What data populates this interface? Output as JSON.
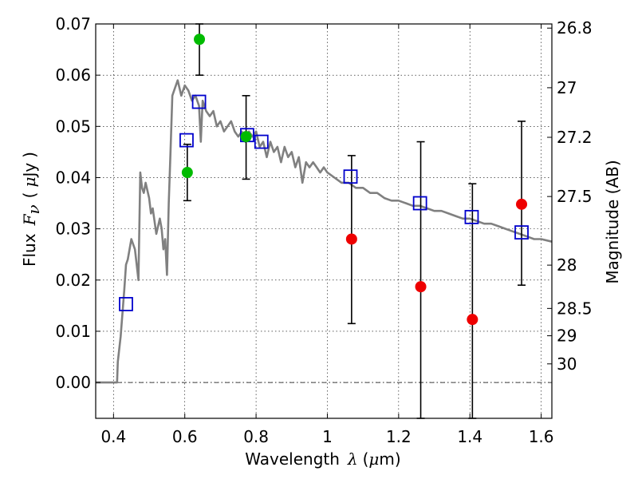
{
  "chart_data": {
    "type": "scatter",
    "xlabel": {
      "prefix": "Wavelength",
      "symbol": "λ",
      "unit_open": "(",
      "unit_mu": "μ",
      "unit_rest": "m)"
    },
    "ylabel": {
      "prefix": "Flux",
      "symbol": "F",
      "sub": "ν",
      "unit_open": "(",
      "unit_mu": "μ",
      "unit_rest": "Jy",
      "unit_close": ")"
    },
    "y2label": "Magnitude (AB)",
    "xlim": [
      0.35,
      1.63
    ],
    "ylim": [
      -0.007,
      0.07
    ],
    "grid": true,
    "xticks": [
      {
        "v": 0.4,
        "label": "0.4"
      },
      {
        "v": 0.6,
        "label": "0.6"
      },
      {
        "v": 0.8,
        "label": "0.8"
      },
      {
        "v": 1.0,
        "label": "1"
      },
      {
        "v": 1.2,
        "label": "1.2"
      },
      {
        "v": 1.4,
        "label": "1.4"
      },
      {
        "v": 1.6,
        "label": "1.6"
      }
    ],
    "yticks": [
      {
        "v": 0.0,
        "label": "0.00"
      },
      {
        "v": 0.01,
        "label": "0.01"
      },
      {
        "v": 0.02,
        "label": "0.02"
      },
      {
        "v": 0.03,
        "label": "0.03"
      },
      {
        "v": 0.04,
        "label": "0.04"
      },
      {
        "v": 0.05,
        "label": "0.05"
      },
      {
        "v": 0.06,
        "label": "0.06"
      },
      {
        "v": 0.07,
        "label": "0.07"
      }
    ],
    "magnitude_ticks": [
      {
        "mag": 26.8,
        "label": "26.8"
      },
      {
        "mag": 27.0,
        "label": "27"
      },
      {
        "mag": 27.2,
        "label": "27.2"
      },
      {
        "mag": 27.5,
        "label": "27.5"
      },
      {
        "mag": 28.0,
        "label": "28"
      },
      {
        "mag": 28.5,
        "label": "28.5"
      },
      {
        "mag": 29.0,
        "label": "29"
      },
      {
        "mag": 30.0,
        "label": "30"
      }
    ],
    "colors": {
      "template": "#808080",
      "model_squares": "#0000cc",
      "observed_optical": "#00bb00",
      "observed_nir": "#ee0000",
      "errorbar": "#000000"
    },
    "template_spectrum": {
      "x": [
        0.35,
        0.4,
        0.41,
        0.412,
        0.42,
        0.43,
        0.435,
        0.44,
        0.45,
        0.46,
        0.47,
        0.475,
        0.48,
        0.485,
        0.49,
        0.5,
        0.505,
        0.51,
        0.52,
        0.53,
        0.535,
        0.54,
        0.545,
        0.55,
        0.555,
        0.56,
        0.565,
        0.57,
        0.58,
        0.59,
        0.6,
        0.61,
        0.62,
        0.63,
        0.64,
        0.645,
        0.65,
        0.66,
        0.67,
        0.68,
        0.69,
        0.7,
        0.71,
        0.72,
        0.73,
        0.74,
        0.75,
        0.76,
        0.77,
        0.78,
        0.79,
        0.8,
        0.81,
        0.82,
        0.83,
        0.84,
        0.85,
        0.86,
        0.87,
        0.88,
        0.89,
        0.9,
        0.91,
        0.92,
        0.93,
        0.94,
        0.95,
        0.96,
        0.97,
        0.98,
        0.99,
        1.0,
        1.02,
        1.04,
        1.06,
        1.08,
        1.1,
        1.12,
        1.14,
        1.16,
        1.18,
        1.2,
        1.22,
        1.24,
        1.26,
        1.28,
        1.3,
        1.32,
        1.34,
        1.36,
        1.38,
        1.4,
        1.42,
        1.44,
        1.46,
        1.48,
        1.5,
        1.52,
        1.54,
        1.56,
        1.58,
        1.6,
        1.63
      ],
      "y": [
        0.0,
        0.0,
        0.0,
        0.004,
        0.009,
        0.018,
        0.023,
        0.024,
        0.028,
        0.026,
        0.02,
        0.041,
        0.038,
        0.037,
        0.039,
        0.036,
        0.033,
        0.034,
        0.029,
        0.032,
        0.03,
        0.026,
        0.028,
        0.021,
        0.035,
        0.045,
        0.056,
        0.057,
        0.059,
        0.056,
        0.058,
        0.057,
        0.055,
        0.056,
        0.054,
        0.047,
        0.055,
        0.053,
        0.052,
        0.053,
        0.05,
        0.051,
        0.049,
        0.05,
        0.051,
        0.049,
        0.048,
        0.049,
        0.047,
        0.049,
        0.048,
        0.049,
        0.046,
        0.047,
        0.044,
        0.047,
        0.045,
        0.046,
        0.043,
        0.046,
        0.044,
        0.045,
        0.042,
        0.044,
        0.039,
        0.043,
        0.042,
        0.043,
        0.042,
        0.041,
        0.042,
        0.041,
        0.04,
        0.039,
        0.039,
        0.038,
        0.038,
        0.037,
        0.037,
        0.036,
        0.0355,
        0.0355,
        0.035,
        0.0345,
        0.0345,
        0.034,
        0.0335,
        0.0335,
        0.033,
        0.0325,
        0.032,
        0.032,
        0.0315,
        0.031,
        0.031,
        0.0305,
        0.03,
        0.0295,
        0.029,
        0.0285,
        0.028,
        0.028,
        0.0275
      ]
    },
    "model_squares": [
      {
        "x": 0.435,
        "y": 0.0153
      },
      {
        "x": 0.605,
        "y": 0.0473
      },
      {
        "x": 0.64,
        "y": 0.0548
      },
      {
        "x": 0.775,
        "y": 0.0483
      },
      {
        "x": 0.815,
        "y": 0.047
      },
      {
        "x": 1.065,
        "y": 0.0402
      },
      {
        "x": 1.26,
        "y": 0.035
      },
      {
        "x": 1.405,
        "y": 0.0323
      },
      {
        "x": 1.545,
        "y": 0.0293
      }
    ],
    "observed_optical": [
      {
        "x": 0.607,
        "y": 0.041,
        "err_lo": 0.0355,
        "err_hi": 0.0465
      },
      {
        "x": 0.641,
        "y": 0.067,
        "err_lo": 0.06,
        "err_hi": 0.07
      },
      {
        "x": 0.772,
        "y": 0.048,
        "err_lo": 0.0397,
        "err_hi": 0.056
      }
    ],
    "observed_nir": [
      {
        "x": 1.068,
        "y": 0.028,
        "err_lo": 0.0115,
        "err_hi": 0.0443
      },
      {
        "x": 1.262,
        "y": 0.0187,
        "err_lo": -0.007,
        "err_hi": 0.047
      },
      {
        "x": 1.407,
        "y": 0.0123,
        "err_lo": -0.007,
        "err_hi": 0.0388
      },
      {
        "x": 1.545,
        "y": 0.0348,
        "err_lo": 0.019,
        "err_hi": 0.051
      }
    ]
  }
}
